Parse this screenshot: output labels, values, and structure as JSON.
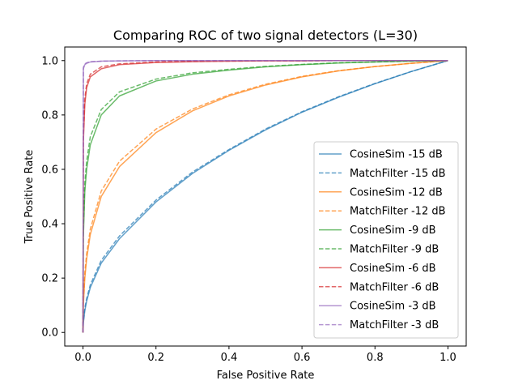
{
  "chart_data": {
    "type": "line",
    "title": "Comparing ROC of two signal detectors (L=30)",
    "xlabel": "False Positive Rate",
    "ylabel": "True Positive Rate",
    "xlim": [
      -0.05,
      1.05
    ],
    "ylim": [
      -0.05,
      1.05
    ],
    "xticks": [
      "0.0",
      "0.2",
      "0.4",
      "0.6",
      "0.8",
      "1.0"
    ],
    "yticks": [
      "0.0",
      "0.2",
      "0.4",
      "0.6",
      "0.8",
      "1.0"
    ],
    "grid": false,
    "legend_position": "lower-right",
    "x": [
      0,
      0.001,
      0.005,
      0.01,
      0.02,
      0.05,
      0.1,
      0.2,
      0.3,
      0.4,
      0.5,
      0.6,
      0.7,
      0.8,
      0.9,
      1.0
    ],
    "series": [
      {
        "name": "CosineSim -15 dB",
        "style": "solid",
        "color": "#1f77b4",
        "values": [
          0.0,
          0.035,
          0.08,
          0.115,
          0.165,
          0.255,
          0.345,
          0.48,
          0.585,
          0.67,
          0.745,
          0.81,
          0.865,
          0.915,
          0.96,
          1.0
        ]
      },
      {
        "name": "MatchFilter -15 dB",
        "style": "dashed",
        "color": "#1f77b4",
        "values": [
          0.0,
          0.04,
          0.09,
          0.125,
          0.175,
          0.265,
          0.355,
          0.487,
          0.59,
          0.673,
          0.748,
          0.812,
          0.867,
          0.916,
          0.96,
          1.0
        ]
      },
      {
        "name": "CosineSim -12 dB",
        "style": "solid",
        "color": "#ff7f0e",
        "values": [
          0.0,
          0.1,
          0.2,
          0.27,
          0.36,
          0.5,
          0.61,
          0.735,
          0.815,
          0.87,
          0.91,
          0.94,
          0.962,
          0.978,
          0.99,
          1.0
        ]
      },
      {
        "name": "MatchFilter -12 dB",
        "style": "dashed",
        "color": "#ff7f0e",
        "values": [
          0.0,
          0.11,
          0.22,
          0.29,
          0.38,
          0.52,
          0.63,
          0.748,
          0.822,
          0.874,
          0.913,
          0.942,
          0.963,
          0.978,
          0.99,
          1.0
        ]
      },
      {
        "name": "CosineSim -9 dB",
        "style": "solid",
        "color": "#2ca02c",
        "values": [
          0.0,
          0.35,
          0.52,
          0.6,
          0.69,
          0.8,
          0.87,
          0.925,
          0.95,
          0.965,
          0.977,
          0.985,
          0.991,
          0.995,
          0.998,
          1.0
        ]
      },
      {
        "name": "MatchFilter -9 dB",
        "style": "dashed",
        "color": "#2ca02c",
        "values": [
          0.0,
          0.38,
          0.55,
          0.63,
          0.72,
          0.82,
          0.885,
          0.932,
          0.955,
          0.968,
          0.979,
          0.986,
          0.992,
          0.995,
          0.998,
          1.0
        ]
      },
      {
        "name": "CosineSim -6 dB",
        "style": "solid",
        "color": "#d62728",
        "values": [
          0.0,
          0.7,
          0.84,
          0.9,
          0.94,
          0.97,
          0.985,
          0.993,
          0.996,
          0.998,
          0.999,
          0.999,
          1.0,
          1.0,
          1.0,
          1.0
        ]
      },
      {
        "name": "MatchFilter -6 dB",
        "style": "dashed",
        "color": "#d62728",
        "values": [
          0.0,
          0.72,
          0.86,
          0.915,
          0.95,
          0.977,
          0.988,
          0.995,
          0.997,
          0.998,
          0.999,
          0.999,
          1.0,
          1.0,
          1.0,
          1.0
        ]
      },
      {
        "name": "CosineSim -3 dB",
        "style": "solid",
        "color": "#9467bd",
        "values": [
          0.0,
          0.97,
          0.985,
          0.99,
          0.995,
          0.998,
          0.999,
          1.0,
          1.0,
          1.0,
          1.0,
          1.0,
          1.0,
          1.0,
          1.0,
          1.0
        ]
      },
      {
        "name": "MatchFilter -3 dB",
        "style": "dashed",
        "color": "#9467bd",
        "values": [
          0.0,
          0.975,
          0.988,
          0.992,
          0.996,
          0.998,
          0.999,
          1.0,
          1.0,
          1.0,
          1.0,
          1.0,
          1.0,
          1.0,
          1.0,
          1.0
        ]
      }
    ]
  }
}
